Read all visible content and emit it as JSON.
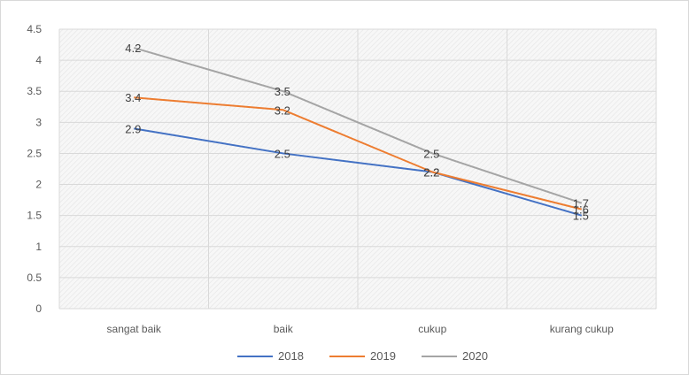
{
  "chart_data": {
    "type": "line",
    "categories": [
      "sangat baik",
      "baik",
      "cukup",
      "kurang cukup"
    ],
    "series": [
      {
        "name": "2018",
        "values": [
          2.9,
          2.5,
          2.2,
          1.5
        ],
        "color": "#4472c4"
      },
      {
        "name": "2019",
        "values": [
          3.4,
          3.2,
          2.2,
          1.6
        ],
        "color": "#ed7d31"
      },
      {
        "name": "2020",
        "values": [
          4.2,
          3.5,
          2.5,
          1.7
        ],
        "color": "#a5a5a5"
      }
    ],
    "ylim": [
      0,
      4.5
    ],
    "yticks": [
      "0",
      "0.5",
      "1",
      "1.5",
      "2",
      "2.5",
      "3",
      "3.5",
      "4",
      "4.5"
    ],
    "grid": true,
    "legend_position": "bottom"
  }
}
